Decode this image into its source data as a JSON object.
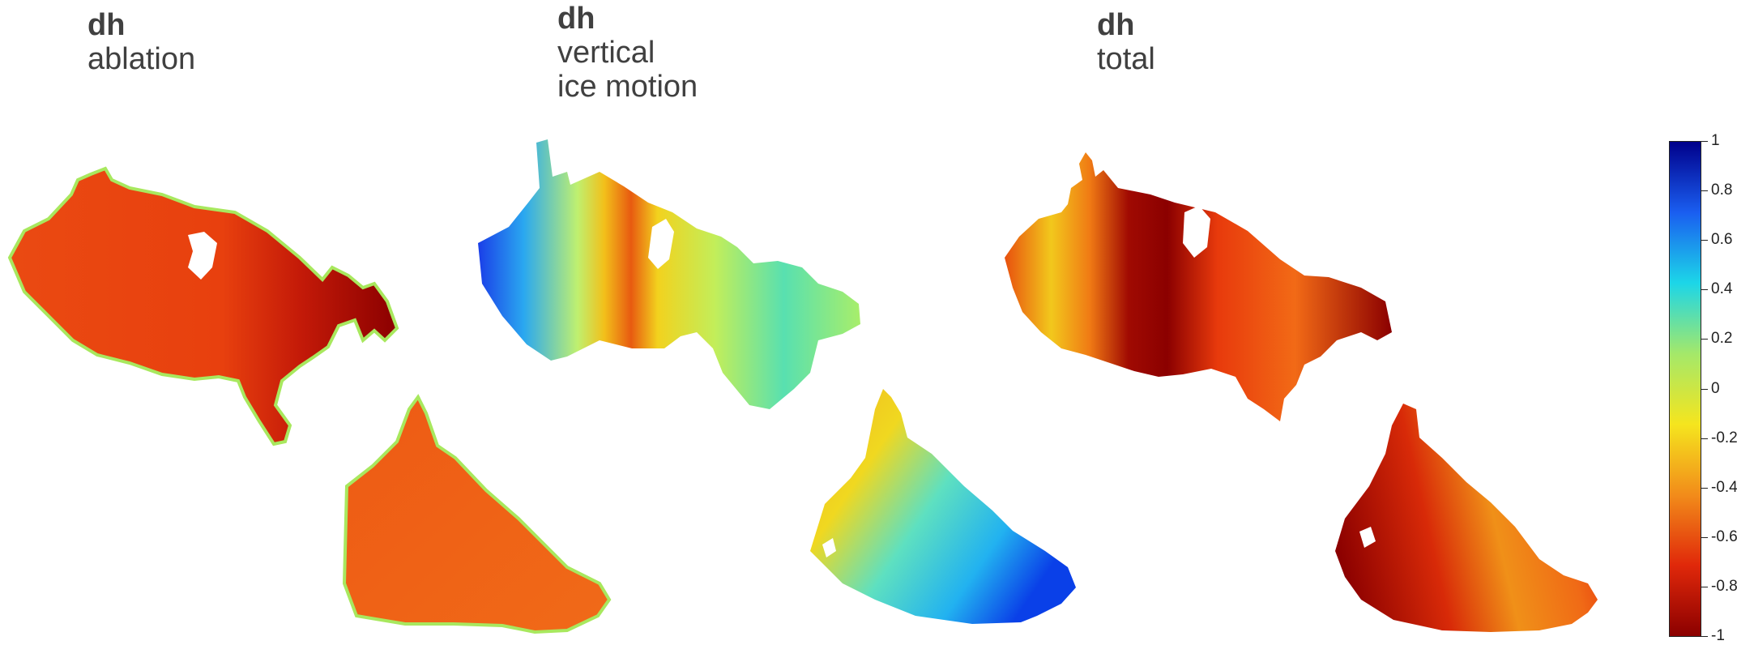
{
  "panels": [
    {
      "heading": "dh",
      "lines": [
        "ablation"
      ]
    },
    {
      "heading": "dh",
      "lines": [
        "vertical",
        "ice motion"
      ]
    },
    {
      "heading": "dh",
      "lines": [
        "total"
      ]
    }
  ],
  "colorbar": {
    "min": -1,
    "max": 1,
    "ticks": [
      "1",
      "0.8",
      "0.6",
      "0.4",
      "0.2",
      "0",
      "-0.2",
      "-0.4",
      "-0.6",
      "-0.8",
      "-1"
    ],
    "colormap": "jet (dark red at -1, green near 0, dark blue at 1)"
  },
  "colors": {
    "dark_red": "#8b0000",
    "red": "#e0280a",
    "orange": "#f28c1a",
    "yellow": "#f5e51e",
    "green": "#a4e86a",
    "cyan": "#1cd6e8",
    "blue": "#1a5ef0",
    "dark_blue": "#00008b",
    "text": "#404040"
  }
}
